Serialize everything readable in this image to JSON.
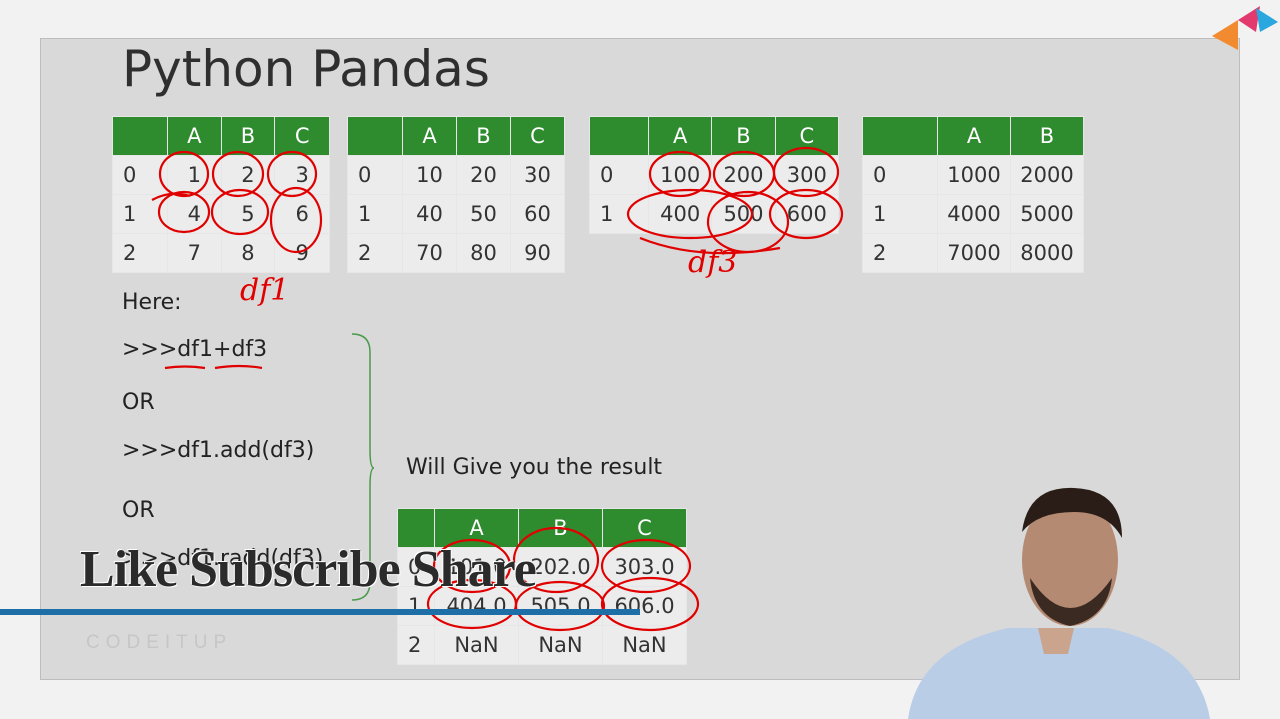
{
  "slide": {
    "title": "Python Pandas",
    "here_label": "Here:",
    "code1": ">>>df1+df3",
    "or1": "OR",
    "code2": ">>>df1.add(df3)",
    "or2": "OR",
    "code3": ">>>df1.radd(df3)",
    "result_label": "Will Give you the result"
  },
  "tables": [
    {
      "columns": [
        "",
        "A",
        "B",
        "C"
      ],
      "rows": [
        [
          "0",
          "1",
          "2",
          "3"
        ],
        [
          "1",
          "4",
          "5",
          "6"
        ],
        [
          "2",
          "7",
          "8",
          "9"
        ]
      ]
    },
    {
      "columns": [
        "",
        "A",
        "B",
        "C"
      ],
      "rows": [
        [
          "0",
          "10",
          "20",
          "30"
        ],
        [
          "1",
          "40",
          "50",
          "60"
        ],
        [
          "2",
          "70",
          "80",
          "90"
        ]
      ]
    },
    {
      "columns": [
        "",
        "A",
        "B",
        "C"
      ],
      "rows": [
        [
          "0",
          "100",
          "200",
          "300"
        ],
        [
          "1",
          "400",
          "500",
          "600"
        ]
      ]
    },
    {
      "columns": [
        "",
        "A",
        "B"
      ],
      "rows": [
        [
          "0",
          "1000",
          "2000"
        ],
        [
          "1",
          "4000",
          "5000"
        ],
        [
          "2",
          "7000",
          "8000"
        ]
      ]
    },
    {
      "columns": [
        "",
        "A",
        "B",
        "C"
      ],
      "rows": [
        [
          "0",
          "101.0",
          "202.0",
          "303.0"
        ],
        [
          "1",
          "404.0",
          "505.0",
          "606.0"
        ],
        [
          "2",
          "NaN",
          "NaN",
          "NaN"
        ]
      ]
    }
  ],
  "annotations": {
    "df1_label": "df1",
    "df3_label": "df3"
  },
  "overlay": {
    "banner": "Like Subscribe Share",
    "watermark": "CODEITUP"
  },
  "colors": {
    "header_green": "#2e8b2e",
    "ink_red": "#e00000",
    "accent_blue": "#1e6fa8"
  }
}
